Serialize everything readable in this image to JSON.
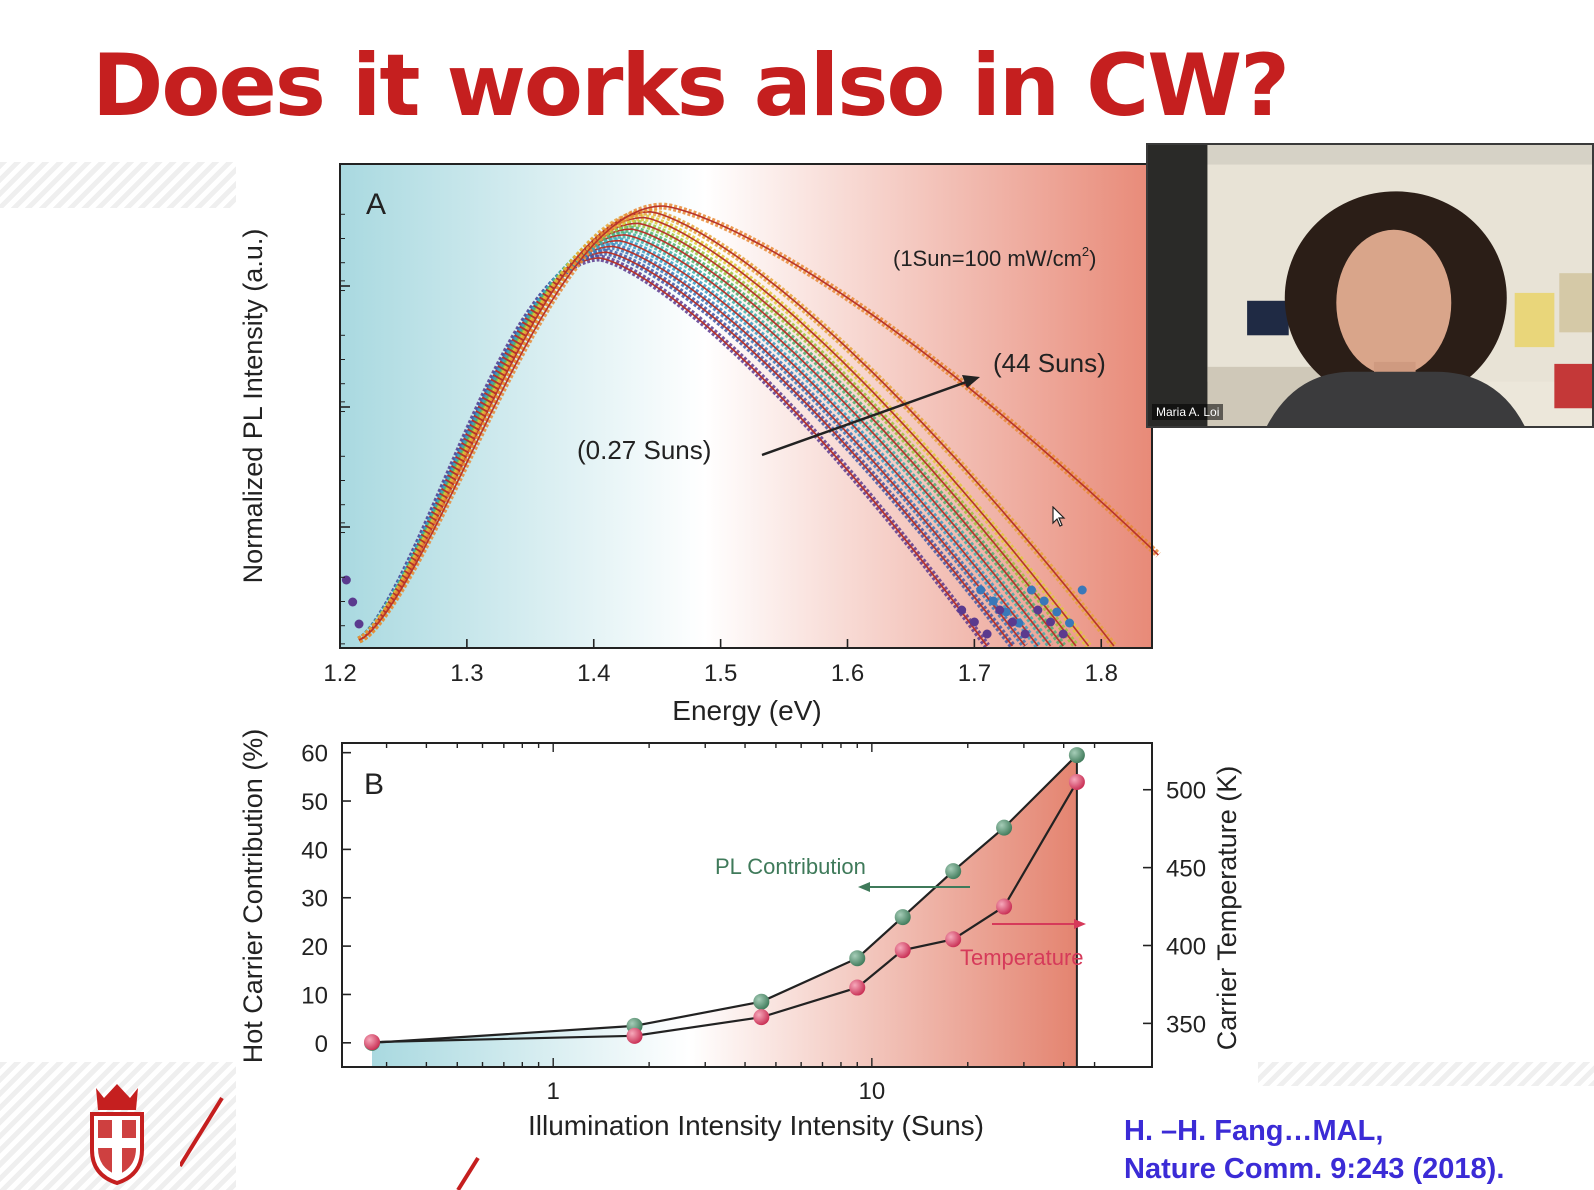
{
  "slide": {
    "title": "Does it works also in CW?",
    "citation_line1": "H. –H. Fang…MAL,",
    "citation_line2": "Nature Comm. 9:243 (2018)."
  },
  "video": {
    "participant_name": "Maria A. Loi"
  },
  "colors": {
    "title": "#c51f1f",
    "citation": "#3b2bd6",
    "pl_contribution": "#3f7a5a",
    "temperature": "#d63a5a"
  },
  "chart_data": [
    {
      "type": "line",
      "panel_label": "A",
      "xlabel": "Energy (eV)",
      "ylabel": "Normalized PL Intensity (a.u.)",
      "xlim": [
        1.2,
        1.84
      ],
      "x_ticks": [
        "1.2",
        "1.3",
        "1.4",
        "1.5",
        "1.6",
        "1.7",
        "1.8"
      ],
      "y_scale": "log",
      "background": "gradient from light blue (low energy) to salmon (high energy)",
      "annotations": [
        "(1Sun=100 mW/cm",
        "2",
        ")",
        "(44 Suns)",
        "(0.27 Suns)"
      ],
      "series_count": 10,
      "series": [
        {
          "peak_energy_ev": 1.405,
          "high_energy_cutoff_ev": 1.71,
          "color": "#5b3a8e"
        },
        {
          "peak_energy_ev": 1.41,
          "high_energy_cutoff_ev": 1.73,
          "color": "#3f57a6"
        },
        {
          "peak_energy_ev": 1.415,
          "high_energy_cutoff_ev": 1.74,
          "color": "#3a78b8"
        },
        {
          "peak_energy_ev": 1.42,
          "high_energy_cutoff_ev": 1.75,
          "color": "#3a9ec4"
        },
        {
          "peak_energy_ev": 1.425,
          "high_energy_cutoff_ev": 1.76,
          "color": "#3fb0a8"
        },
        {
          "peak_energy_ev": 1.43,
          "high_energy_cutoff_ev": 1.77,
          "color": "#4fb070"
        },
        {
          "peak_energy_ev": 1.435,
          "high_energy_cutoff_ev": 1.78,
          "color": "#9ac43f"
        },
        {
          "peak_energy_ev": 1.44,
          "high_energy_cutoff_ev": 1.79,
          "color": "#e0c83a"
        },
        {
          "peak_energy_ev": 1.445,
          "high_energy_cutoff_ev": 1.81,
          "color": "#e6a33a"
        },
        {
          "peak_energy_ev": 1.455,
          "high_energy_cutoff_ev": 1.845,
          "color": "#e88a35"
        }
      ]
    },
    {
      "type": "line",
      "panel_label": "B",
      "xlabel": "Illumination Intensity Intensity (Suns)",
      "ylabel": "Hot Carrier Contribution (%)",
      "ylabel_right": "Carrier Temperature (K)",
      "x_scale": "log",
      "xlim": [
        0.27,
        52
      ],
      "x_ticks": [
        "1",
        "10"
      ],
      "ylim": [
        -5,
        62
      ],
      "y_ticks": [
        "0",
        "10",
        "20",
        "30",
        "40",
        "50",
        "60"
      ],
      "y2lim": [
        322,
        530
      ],
      "y2_ticks": [
        "350",
        "400",
        "450",
        "500"
      ],
      "series": [
        {
          "name": "PL Contribution",
          "axis": "left",
          "x": [
            0.27,
            1.8,
            4.5,
            9.0,
            12.5,
            18.0,
            26.0,
            44.0
          ],
          "y": [
            0,
            3.5,
            8.5,
            17.5,
            26,
            35.5,
            44.5,
            59.5
          ]
        },
        {
          "name": "Temperature",
          "axis": "right",
          "x": [
            0.27,
            1.8,
            4.5,
            9.0,
            12.5,
            18.0,
            26.0,
            44.0
          ],
          "y": [
            338,
            342,
            354,
            373,
            397,
            404,
            425,
            505
          ]
        }
      ]
    }
  ]
}
